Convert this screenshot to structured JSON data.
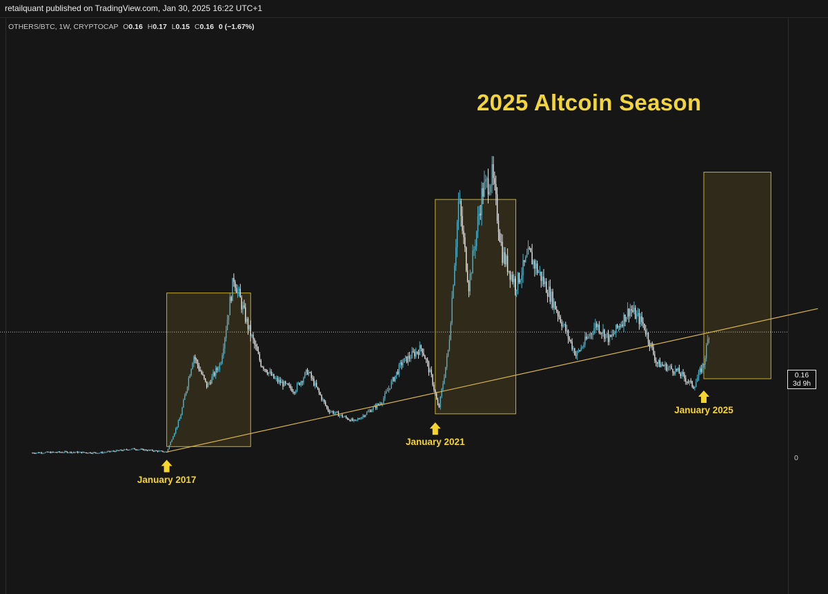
{
  "header": {
    "published": "retailquant published on TradingView.com, Jan 30, 2025 16:22 UTC+1"
  },
  "symbol": {
    "name": "OTHERS/BTC, 1W, CRYPTOCAP",
    "o_key": "O",
    "o": "0.16",
    "h_key": "H",
    "h": "0.17",
    "l_key": "L",
    "l": "0.15",
    "c_key": "C",
    "c": "0.16",
    "change": "0 (−1.67%)"
  },
  "price_axis": {
    "last_price": "0.16",
    "countdown": "3d 9h",
    "zero": "0"
  },
  "annotations": {
    "title": "2025 Altcoin Season",
    "labels": [
      "January 2017",
      "January 2021",
      "January 2025"
    ]
  },
  "colors": {
    "background": "#161616",
    "candle_up": "#4fb3c9",
    "candle_down": "#e6e6e6",
    "highlight": "#f5d430",
    "trendline": "#d9b54c"
  },
  "chart_data": {
    "type": "line",
    "title": "2025 Altcoin Season",
    "symbol": "OTHERS/BTC, 1W, CRYPTOCAP",
    "x": [
      2015.0,
      2015.5,
      2016.0,
      2016.5,
      2016.9,
      2017.0,
      2017.2,
      2017.4,
      2017.6,
      2017.8,
      2018.0,
      2018.2,
      2018.4,
      2018.6,
      2018.9,
      2019.1,
      2019.4,
      2019.8,
      2020.2,
      2020.5,
      2020.8,
      2020.95,
      2021.05,
      2021.2,
      2021.35,
      2021.5,
      2021.7,
      2021.85,
      2022.0,
      2022.2,
      2022.4,
      2022.7,
      2022.9,
      2023.1,
      2023.4,
      2023.6,
      2023.9,
      2024.1,
      2024.3,
      2024.6,
      2024.85,
      2025.0,
      2025.08
    ],
    "y": [
      0.005,
      0.006,
      0.005,
      0.01,
      0.007,
      0.006,
      0.05,
      0.13,
      0.09,
      0.12,
      0.23,
      0.17,
      0.12,
      0.1,
      0.085,
      0.11,
      0.06,
      0.045,
      0.07,
      0.12,
      0.14,
      0.1,
      0.06,
      0.14,
      0.33,
      0.22,
      0.34,
      0.36,
      0.26,
      0.22,
      0.26,
      0.21,
      0.17,
      0.13,
      0.17,
      0.15,
      0.19,
      0.17,
      0.12,
      0.11,
      0.09,
      0.12,
      0.16
    ],
    "last_value": 0.16,
    "y_tick_labels": [
      "0"
    ],
    "highlight_boxes": [
      {
        "label": "January 2017",
        "x_start": 2017.0,
        "x_end": 2018.25
      },
      {
        "label": "January 2021",
        "x_start": 2021.0,
        "x_end": 2022.2
      },
      {
        "label": "January 2025",
        "x_start": 2025.0,
        "x_end": 2026.0
      }
    ],
    "trendline": {
      "x": [
        2017.0,
        2026.7
      ],
      "y": [
        0.006,
        0.19
      ]
    },
    "grid": false
  }
}
